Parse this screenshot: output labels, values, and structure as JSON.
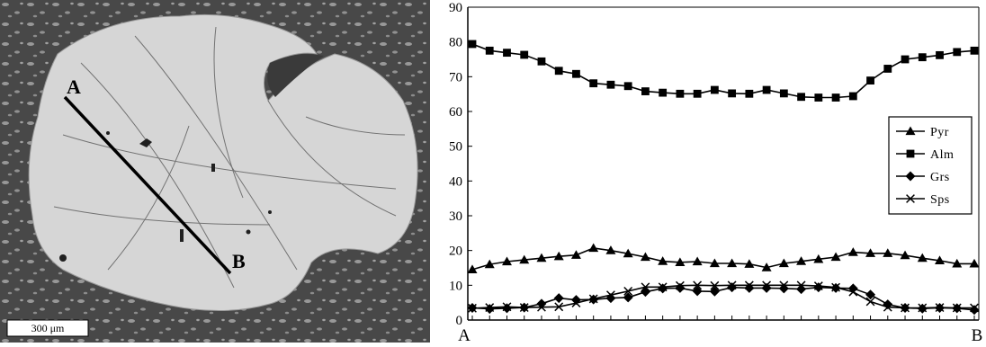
{
  "micrograph": {
    "profile_start_label": "A",
    "profile_end_label": "B",
    "scale_bar_label": "300 μm"
  },
  "chart_data": {
    "type": "line",
    "title": "",
    "xlabel": "",
    "ylabel": "",
    "x_start_label": "A",
    "x_end_label": "B",
    "ylim": [
      0,
      90
    ],
    "yticks": [
      0,
      10,
      20,
      30,
      40,
      50,
      60,
      70,
      80,
      90
    ],
    "grid": false,
    "legend_position": "right",
    "series": [
      {
        "name": "Pyr",
        "marker": "triangle",
        "values": [
          14.5,
          16,
          16.8,
          17.3,
          17.8,
          18.3,
          18.7,
          20.7,
          20,
          19.1,
          18.1,
          16.9,
          16.6,
          16.8,
          16.3,
          16.3,
          16.1,
          15.1,
          16.3,
          16.9,
          17.5,
          18.1,
          19.5,
          19.2,
          19.2,
          18.6,
          17.8,
          17.1,
          16.2,
          16.2
        ]
      },
      {
        "name": "Alm",
        "marker": "square",
        "values": [
          79.4,
          77.5,
          76.9,
          76.3,
          74.4,
          71.7,
          70.8,
          68.1,
          67.7,
          67.3,
          65.8,
          65.4,
          65.1,
          65.1,
          66.2,
          65.2,
          65.1,
          66.2,
          65.2,
          64.2,
          64,
          64,
          64.4,
          68.9,
          72.3,
          75,
          75.6,
          76.2,
          77.1,
          77.5
        ]
      },
      {
        "name": "Grs",
        "marker": "diamond",
        "values": [
          3.5,
          3.2,
          3.4,
          3.6,
          4.7,
          6.3,
          5.8,
          5.9,
          6.3,
          6.5,
          8.1,
          9.1,
          9.2,
          8.3,
          8.2,
          9.4,
          9.2,
          9.2,
          9.1,
          8.9,
          9.4,
          9.2,
          9.1,
          7.3,
          4.5,
          3.5,
          3.3,
          3.5,
          3.4,
          2.9
        ]
      },
      {
        "name": "Sps",
        "marker": "x",
        "values": [
          3.4,
          3.6,
          3.8,
          3.6,
          3.7,
          3.8,
          4.9,
          6.1,
          7.2,
          8.3,
          9.5,
          9.5,
          9.9,
          10,
          9.9,
          10,
          10,
          10,
          10,
          10,
          9.8,
          9.4,
          8.1,
          5.3,
          3.7,
          3.5,
          3.5,
          3.6,
          3.5,
          3.5
        ]
      }
    ]
  }
}
